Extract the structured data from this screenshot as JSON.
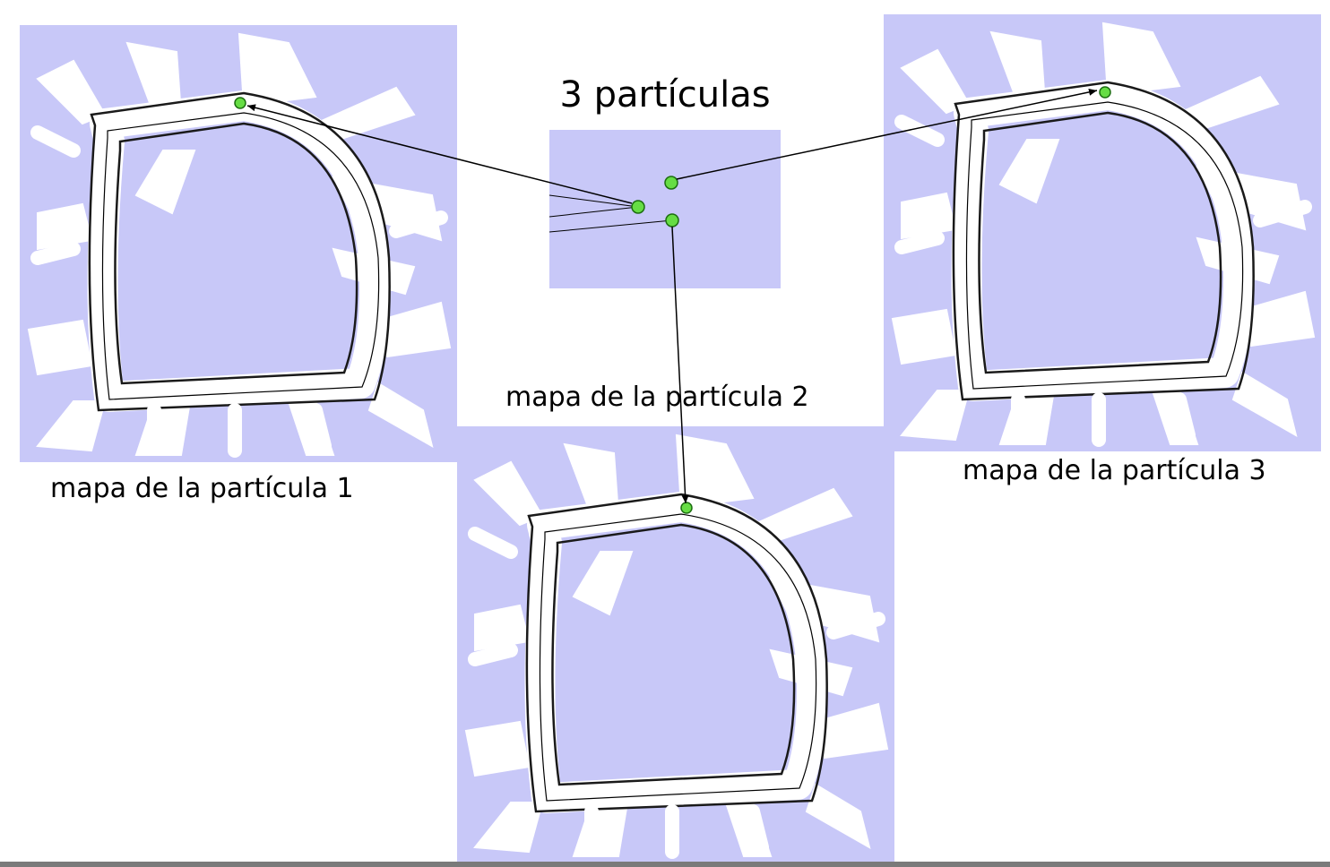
{
  "title": "3 partículas",
  "maps": [
    {
      "label": "mapa de la partícula 1"
    },
    {
      "label": "mapa de la partícula 2"
    },
    {
      "label": "mapa de la partícula 3"
    }
  ],
  "colors": {
    "map_background": "#c8c8f8",
    "corridor": "#ffffff",
    "wall": "#1a1a1a",
    "particle": "#66dd44",
    "particle_outline": "#1c6e10",
    "arrow": "#000000"
  }
}
